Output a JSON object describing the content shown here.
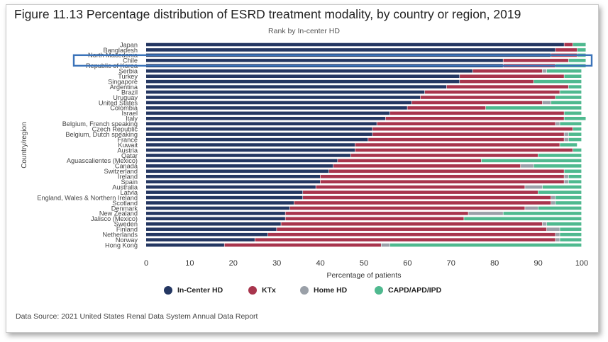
{
  "title": "Figure 11.13 Percentage distribution of ESRD treatment modality, by country or region, 2019",
  "subtitle": "Rank by In-center HD",
  "source": "Data Source: 2021 United States Renal Data System Annual Data Report",
  "colors": {
    "incenter_hd": "#243762",
    "ktx": "#a8354d",
    "home_hd": "#9aa0a8",
    "capd": "#4fb98f",
    "highlight": "#3b73b9"
  },
  "chart_data": {
    "type": "bar",
    "orientation": "horizontal",
    "stacked": true,
    "xlabel": "Percentage of patients",
    "ylabel": "Country/region",
    "xlim": [
      0,
      100
    ],
    "xticks": [
      0,
      10,
      20,
      30,
      40,
      50,
      60,
      70,
      80,
      90,
      100
    ],
    "legend_position": "bottom",
    "highlighted_category": "Chile",
    "categories": [
      "Japan",
      "Bangladesh",
      "North Macedonia",
      "Chile",
      "Republic of Korea",
      "Serbia",
      "Turkey",
      "Singapore",
      "Argentina",
      "Brazil",
      "Uruguay",
      "United States",
      "Colombia",
      "Israel",
      "Italy",
      "Belgium, French speaking",
      "Czech Republic",
      "Belgium, Dutch speaking",
      "France",
      "Kuwait",
      "Austria",
      "Qatar",
      "Aguascalientes (Mexico)",
      "Canada",
      "Switzerland",
      "Ireland",
      "Spain",
      "Australia",
      "Latvia",
      "England, Wales & Northern Ireland",
      "Scotland",
      "Denmark",
      "New Zealand",
      "Jalisco (Mexico)",
      "Sweden",
      "Finland",
      "Netherlands",
      "Norway",
      "Hong Kong"
    ],
    "series": [
      {
        "name": "In-Center HD",
        "values": [
          96,
          94,
          93,
          82,
          82,
          75,
          72,
          72,
          69,
          64,
          63,
          61,
          60,
          56,
          55,
          53,
          52,
          52,
          51,
          48,
          48,
          47,
          44,
          43,
          42,
          40,
          40,
          39,
          36,
          36,
          34,
          33,
          32,
          32,
          31,
          30,
          28,
          25,
          18
        ]
      },
      {
        "name": "KTx",
        "values": [
          2,
          5,
          6,
          15,
          12,
          16,
          24,
          17,
          28,
          31,
          31,
          30,
          18,
          40,
          41,
          41,
          46,
          44,
          45,
          47,
          50,
          43,
          33,
          43,
          54,
          56,
          56,
          48,
          54,
          57,
          59,
          54,
          42,
          41,
          60,
          62,
          66,
          69,
          36
        ]
      },
      {
        "name": "Home HD",
        "values": [
          0,
          0,
          0,
          0,
          0,
          1,
          0,
          0,
          0,
          0,
          0,
          2,
          0,
          0,
          0,
          1,
          0,
          1,
          1,
          0,
          0,
          0,
          0,
          3,
          0,
          1,
          1,
          4,
          0,
          1,
          1,
          3,
          8,
          0,
          1,
          3,
          1,
          1,
          2
        ]
      },
      {
        "name": "CAPD/APD/IPD",
        "values": [
          3,
          2,
          2,
          4,
          7,
          8,
          4,
          11,
          3,
          5,
          6,
          7,
          22,
          4,
          5,
          5,
          2,
          3,
          3,
          4,
          2,
          10,
          23,
          11,
          4,
          3,
          3,
          9,
          10,
          6,
          6,
          10,
          18,
          27,
          8,
          5,
          5,
          5,
          44
        ]
      }
    ]
  }
}
